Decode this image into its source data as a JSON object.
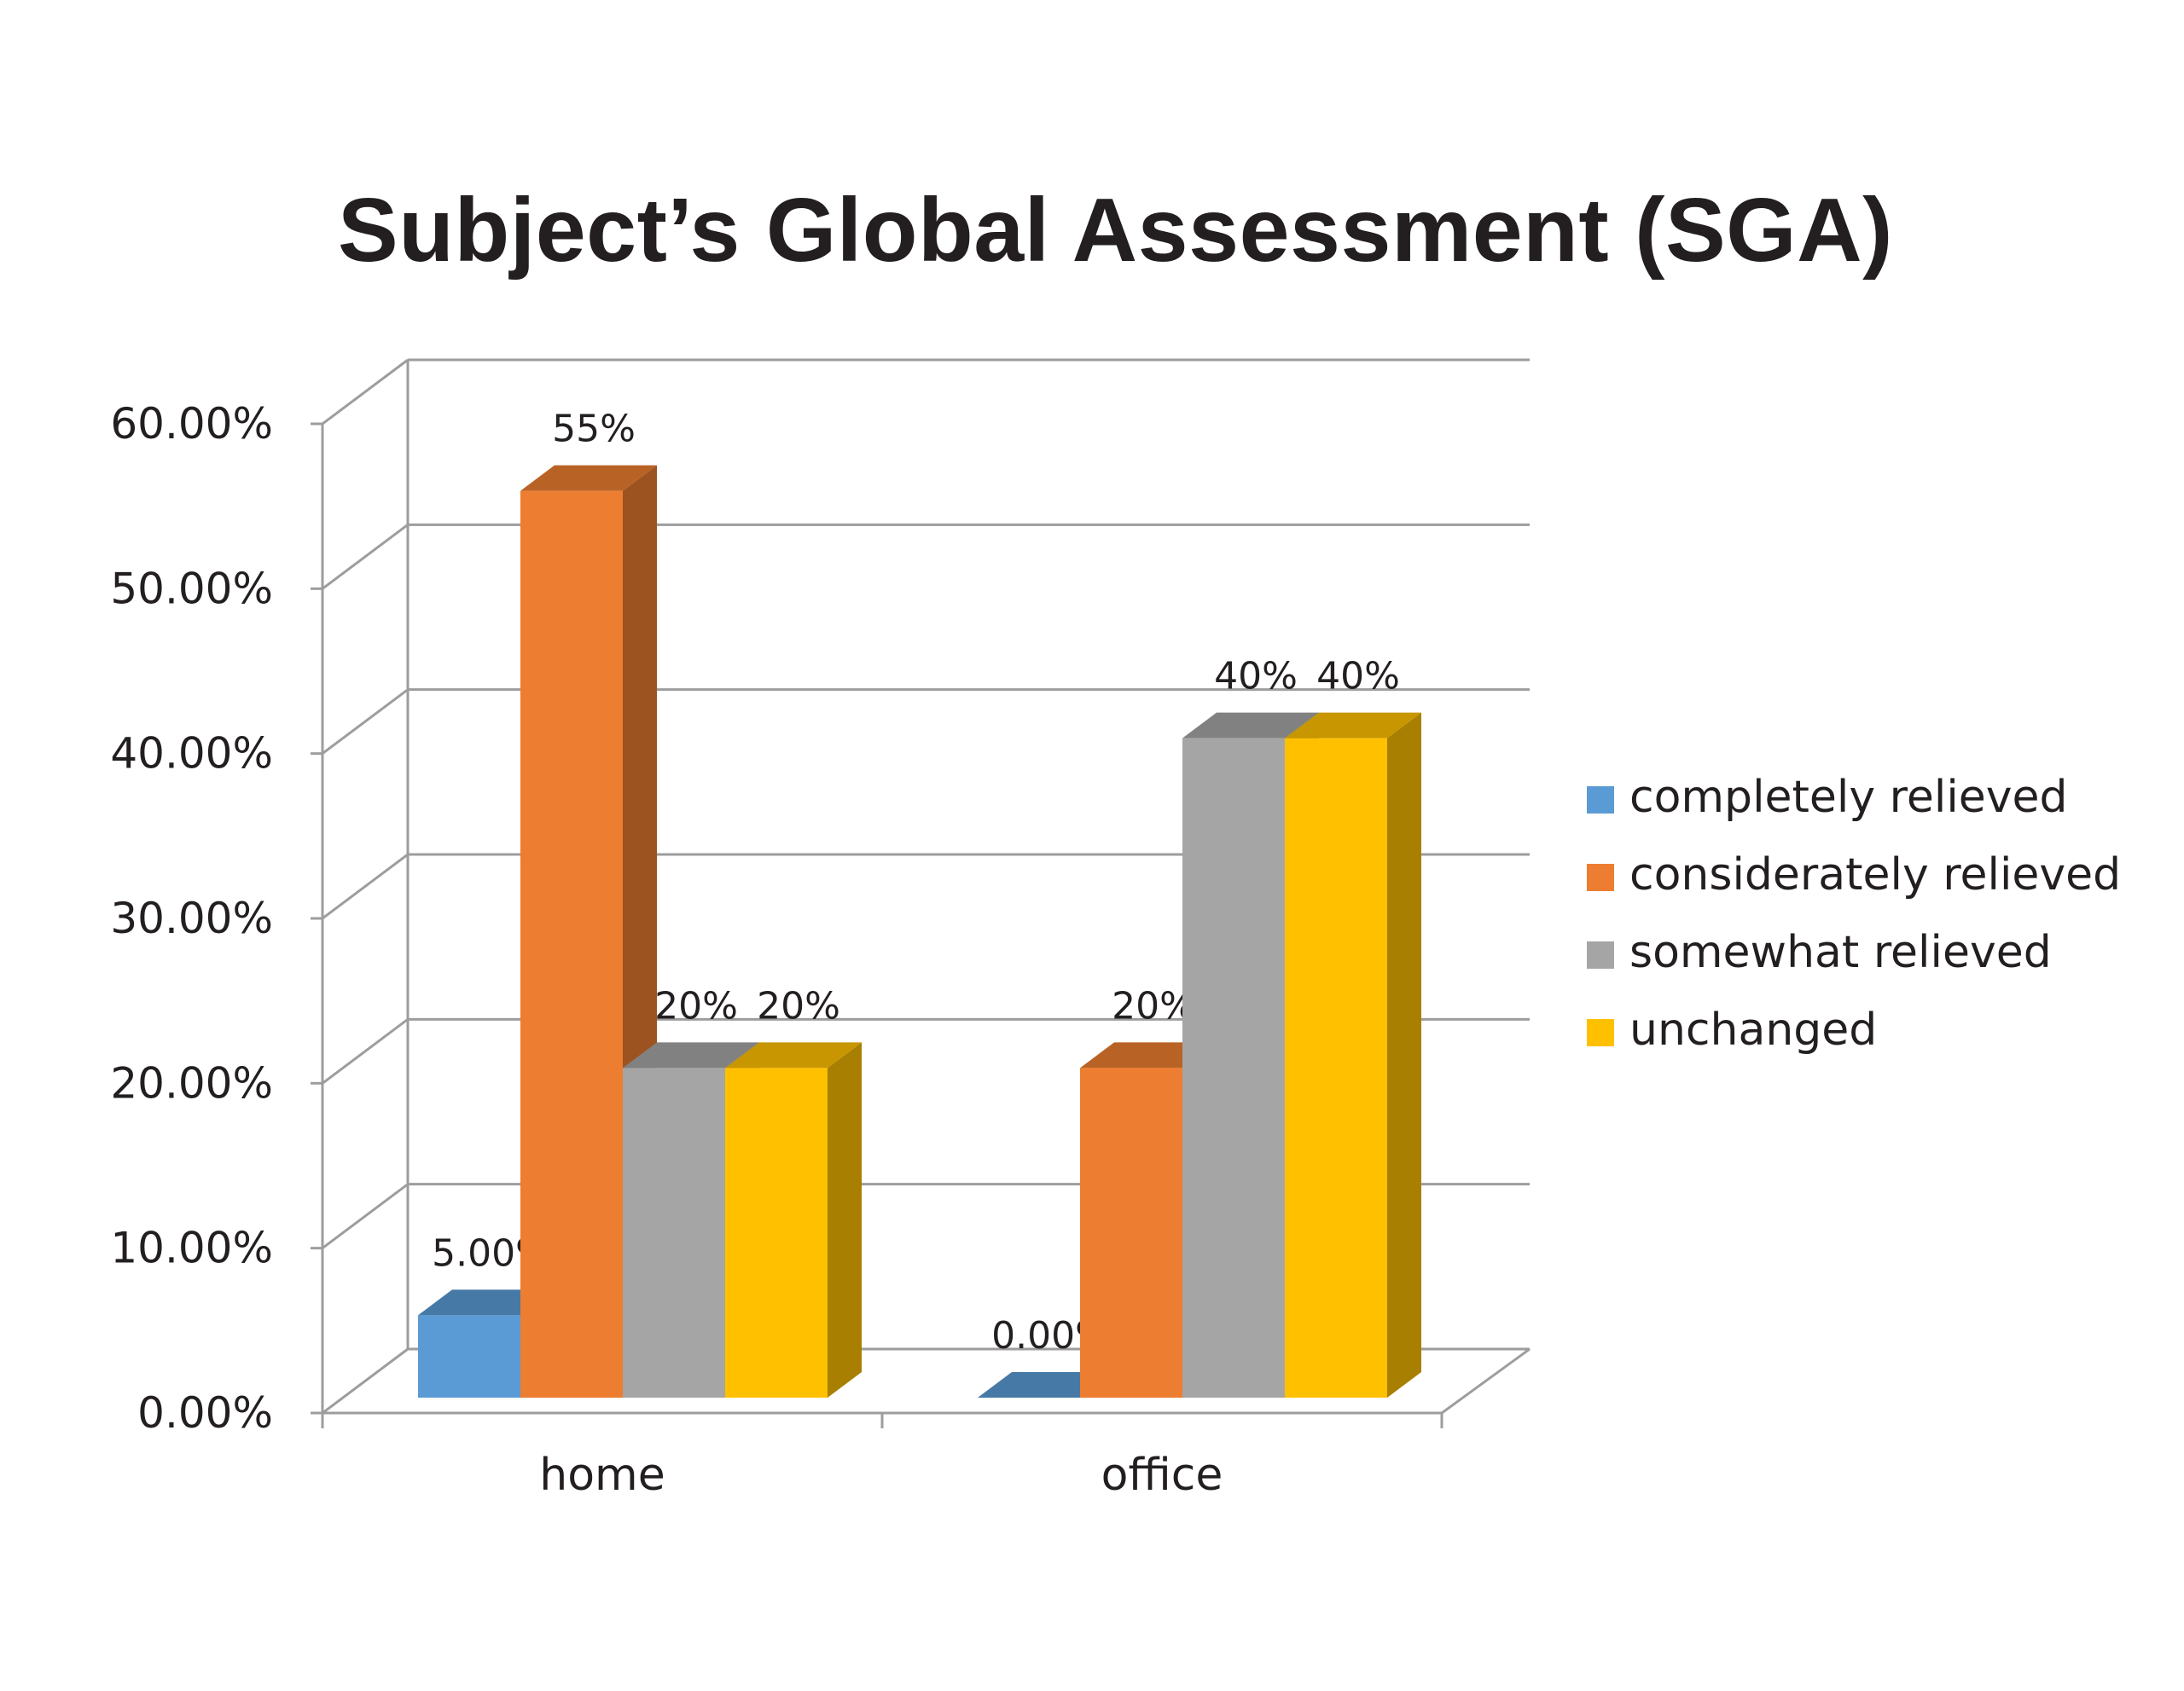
{
  "chart_data": {
    "type": "bar",
    "title": "Subject’s Global Assessment (SGA)",
    "xlabel": "",
    "ylabel": "",
    "categories": [
      "home",
      "office"
    ],
    "ylim": [
      0,
      60
    ],
    "yticks": [
      "0.00%",
      "10.00%",
      "20.00%",
      "30.00%",
      "40.00%",
      "50.00%",
      "60.00%"
    ],
    "grid": true,
    "three_d": true,
    "legend_position": "right",
    "series": [
      {
        "name": "completely relieved",
        "values": [
          5,
          0
        ],
        "labels": [
          "5.00%",
          "0.00%"
        ],
        "color": "#5b9bd5"
      },
      {
        "name": "considerately relieved",
        "values": [
          55,
          20
        ],
        "labels": [
          "55%",
          "20%"
        ],
        "color": "#ed7d31"
      },
      {
        "name": "somewhat relieved",
        "values": [
          20,
          40
        ],
        "labels": [
          "20%",
          "40%"
        ],
        "color": "#a5a5a5"
      },
      {
        "name": "unchanged",
        "values": [
          20,
          40
        ],
        "labels": [
          "20%",
          "40%"
        ],
        "color": "#ffc000"
      }
    ]
  }
}
